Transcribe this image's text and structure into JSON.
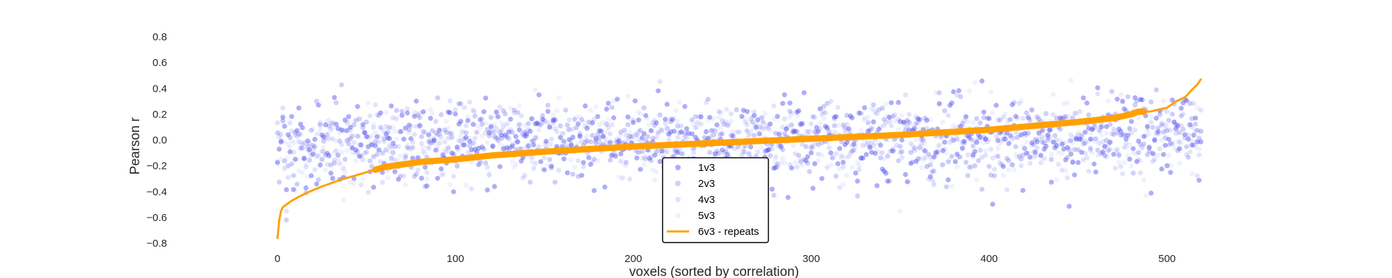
{
  "chart_data": {
    "type": "scatter",
    "title": "",
    "xlabel": "voxels (sorted by correlation)",
    "ylabel": "Pearson r",
    "xlim": [
      -30,
      522
    ],
    "ylim": [
      -0.8,
      0.8
    ],
    "x_ticks": [
      0,
      100,
      200,
      300,
      400,
      500
    ],
    "y_ticks": [
      -0.8,
      -0.6,
      -0.4,
      -0.2,
      0.0,
      0.2,
      0.4,
      0.6,
      0.8
    ],
    "y_tick_labels": [
      "−0.8",
      "−0.6",
      "−0.4",
      "−0.2",
      "0.0",
      "0.2",
      "0.4",
      "0.6",
      "0.8"
    ],
    "grid": false,
    "legend_position": "lower-center",
    "n_voxels": 520,
    "series": [
      {
        "name": "1v3",
        "kind": "scatter",
        "color": "#4b4bf0",
        "opacity": 0.45,
        "noise_sd": 0.17
      },
      {
        "name": "2v3",
        "kind": "scatter",
        "color": "#6060f0",
        "opacity": 0.3,
        "noise_sd": 0.15
      },
      {
        "name": "4v3",
        "kind": "scatter",
        "color": "#8080f0",
        "opacity": 0.22,
        "noise_sd": 0.14
      },
      {
        "name": "5v3",
        "kind": "scatter",
        "color": "#a0a0f5",
        "opacity": 0.15,
        "noise_sd": 0.16
      },
      {
        "name": "6v3 - repeats",
        "kind": "line",
        "color": "#ffa000",
        "x": [
          0,
          1,
          2,
          3,
          5,
          8,
          12,
          18,
          25,
          35,
          45,
          55,
          60,
          70,
          80,
          100,
          120,
          150,
          200,
          250,
          300,
          350,
          400,
          450,
          470,
          480,
          484,
          486,
          490,
          500,
          505,
          510,
          514,
          517,
          519
        ],
        "values": [
          -0.76,
          -0.62,
          -0.55,
          -0.52,
          -0.5,
          -0.47,
          -0.44,
          -0.4,
          -0.36,
          -0.31,
          -0.27,
          -0.23,
          -0.21,
          -0.19,
          -0.17,
          -0.15,
          -0.12,
          -0.09,
          -0.05,
          -0.02,
          0.01,
          0.04,
          0.08,
          0.14,
          0.17,
          0.2,
          0.22,
          0.22,
          0.22,
          0.25,
          0.3,
          0.33,
          0.39,
          0.43,
          0.47
        ]
      }
    ]
  }
}
